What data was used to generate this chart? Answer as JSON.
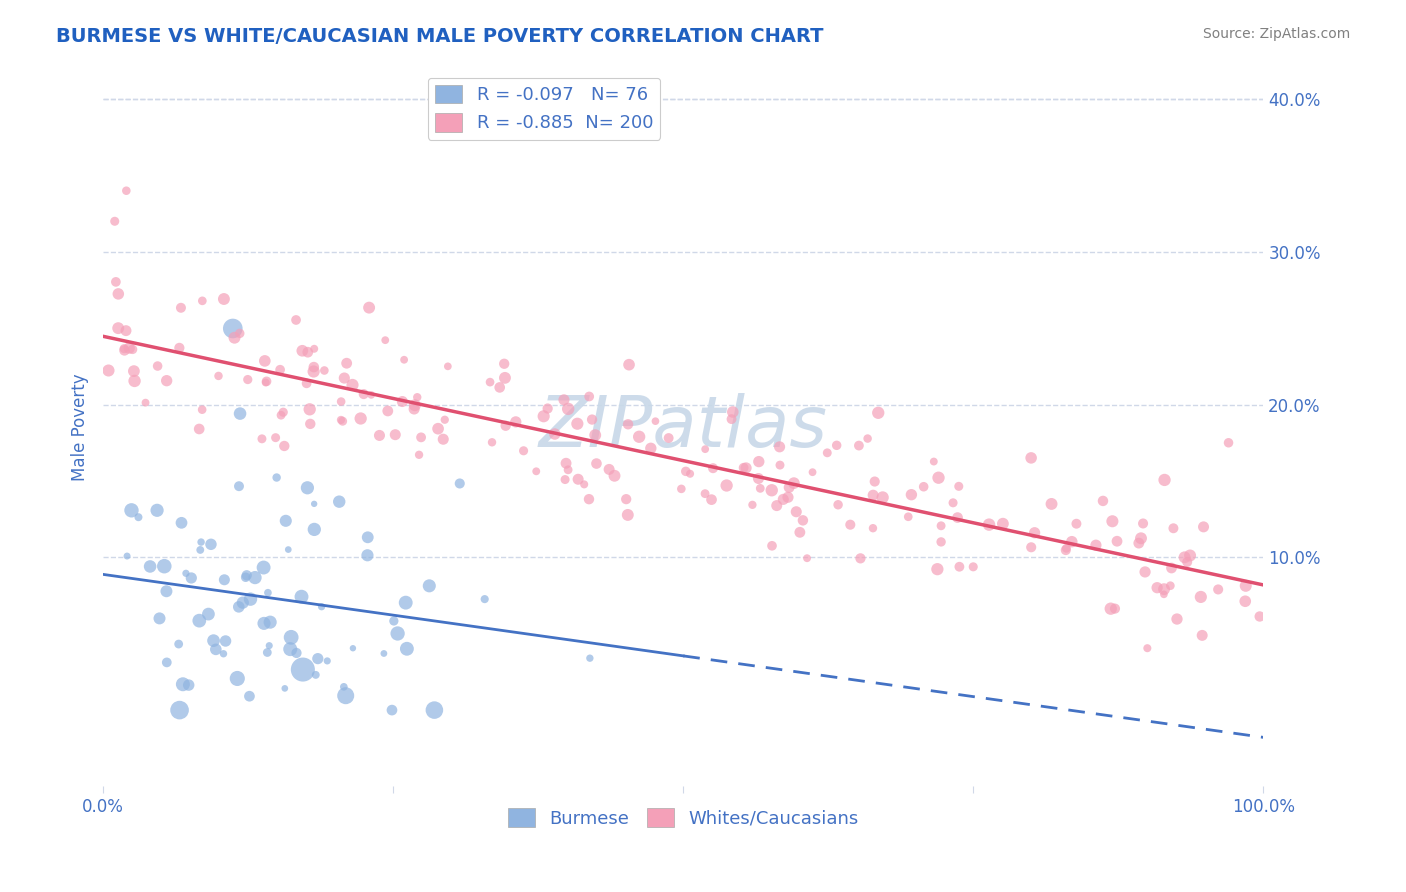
{
  "title": "BURMESE VS WHITE/CAUCASIAN MALE POVERTY CORRELATION CHART",
  "source_text": "Source: ZipAtlas.com",
  "xlabel": "",
  "ylabel": "Male Poverty",
  "legend_label1": "Burmese",
  "legend_label2": "Whites/Caucasians",
  "R1": -0.097,
  "N1": 76,
  "R2": -0.885,
  "N2": 200,
  "color1": "#90b4e0",
  "color2": "#f4a0b8",
  "line_color1": "#4472c4",
  "line_color2": "#e05070",
  "title_color": "#2060c0",
  "axis_color": "#4472c4",
  "watermark_color": "#c8d8e8",
  "xlim": [
    0.0,
    1.0
  ],
  "ylim": [
    -0.05,
    0.42
  ],
  "yticks": [
    0.1,
    0.2,
    0.3,
    0.4
  ],
  "xticks": [
    0.0,
    1.0
  ],
  "xtick_labels": [
    "0.0%",
    "100.0%"
  ],
  "ytick_labels": [
    "10.0%",
    "20.0%",
    "30.0%",
    "40.0%"
  ],
  "grid_color": "#d0d8e8",
  "background_color": "#ffffff"
}
